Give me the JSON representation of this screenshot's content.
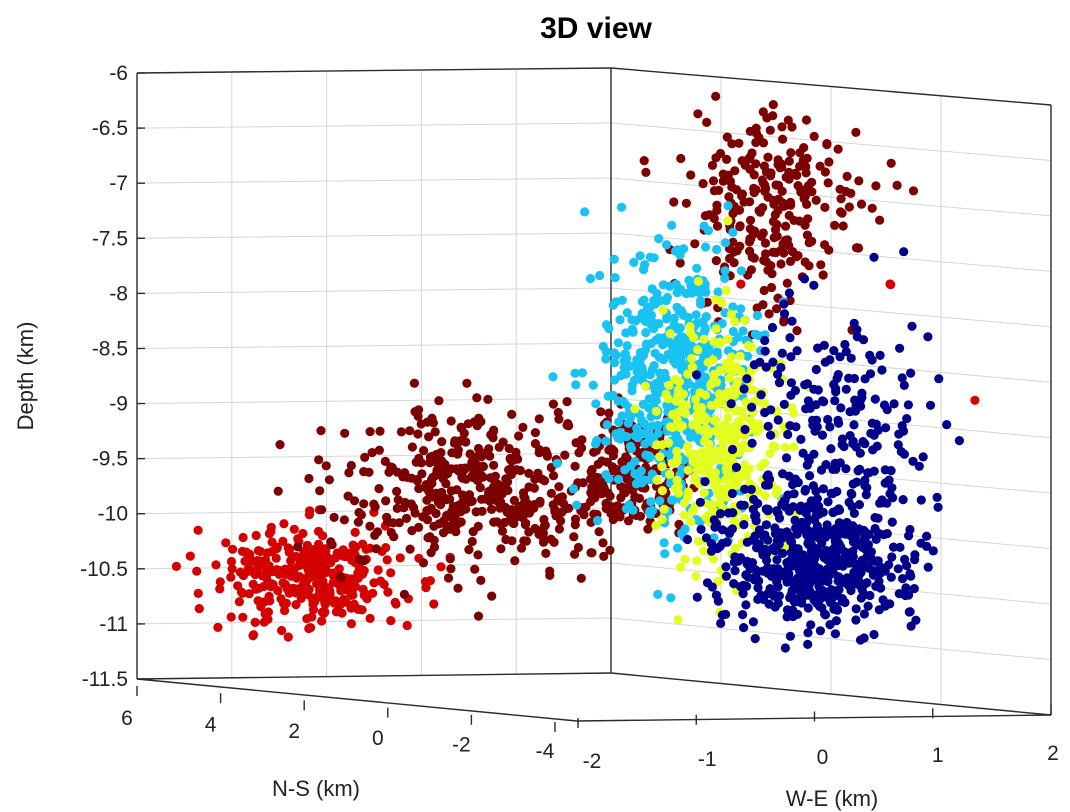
{
  "chart_data": {
    "type": "scatter",
    "title": "3D view",
    "zlabel": "Depth (km)",
    "xlabel": "N-S (km)",
    "ylabel": "W-E (km)",
    "z_ticks": [
      "-6",
      "-6.5",
      "-7",
      "-7.5",
      "-8",
      "-8.5",
      "-9",
      "-9.5",
      "-10",
      "-10.5",
      "-11",
      "-11.5"
    ],
    "z_tick_values": [
      -6,
      -6.5,
      -7,
      -7.5,
      -8,
      -8.5,
      -9,
      -9.5,
      -10,
      -10.5,
      -11,
      -11.5
    ],
    "ns_ticks": [
      "6",
      "4",
      "2",
      "0",
      "-2",
      "-4"
    ],
    "we_ticks": [
      "-2",
      "-1",
      "0",
      "1",
      "2"
    ],
    "zlim": [
      -11.5,
      -6
    ],
    "ns_lim": [
      6,
      -4
    ],
    "we_lim": [
      -2,
      2
    ],
    "grid": true,
    "legend": "none",
    "series": [
      {
        "color": "#d40000",
        "clusters": [
          {
            "ns": 4.3,
            "we": -1.2,
            "depth": -10.5,
            "spread_ns": 0.7,
            "spread_we": 0.3,
            "spread_depth": 0.22,
            "count": 330
          }
        ],
        "outliers": [
          {
            "ns": -1.4,
            "we": 0.3,
            "depth": -7.75
          },
          {
            "ns": -4.6,
            "we": 1.05,
            "depth": -8.75
          },
          {
            "ns": -4.2,
            "we": 0.45,
            "depth": -7.75
          },
          {
            "ns": -4.1,
            "we": 0.5,
            "depth": -7.75
          }
        ]
      },
      {
        "color": "#7d0000",
        "clusters": [
          {
            "ns": 1.6,
            "we": -0.8,
            "depth": -9.7,
            "spread_ns": 1.1,
            "spread_we": 0.45,
            "spread_depth": 0.35,
            "count": 430
          },
          {
            "ns": -0.6,
            "we": -0.3,
            "depth": -9.5,
            "spread_ns": 0.45,
            "spread_we": 0.2,
            "spread_depth": 0.25,
            "count": 170
          },
          {
            "ns": -2.2,
            "we": 0.2,
            "depth": -7.0,
            "spread_ns": 0.7,
            "spread_we": 0.3,
            "spread_depth": 0.45,
            "count": 260
          }
        ],
        "outliers": []
      },
      {
        "color": "#19c2f2",
        "clusters": [
          {
            "ns": -1.2,
            "we": -0.2,
            "depth": -8.7,
            "spread_ns": 0.55,
            "spread_we": 0.25,
            "spread_depth": 0.6,
            "count": 560
          }
        ],
        "outliers": []
      },
      {
        "color": "#e2ff21",
        "clusters": [
          {
            "ns": -1.0,
            "we": 0.3,
            "depth": -9.2,
            "spread_ns": 0.4,
            "spread_we": 0.22,
            "spread_depth": 0.55,
            "count": 350
          }
        ],
        "outliers": []
      },
      {
        "color": "#00008a",
        "clusters": [
          {
            "ns": -1.6,
            "we": 0.9,
            "depth": -10.15,
            "spread_ns": 0.5,
            "spread_we": 0.35,
            "spread_depth": 0.3,
            "count": 540
          },
          {
            "ns": -2.3,
            "we": 0.8,
            "depth": -8.9,
            "spread_ns": 0.6,
            "spread_we": 0.35,
            "spread_depth": 0.55,
            "count": 200
          }
        ],
        "outliers": []
      }
    ]
  }
}
